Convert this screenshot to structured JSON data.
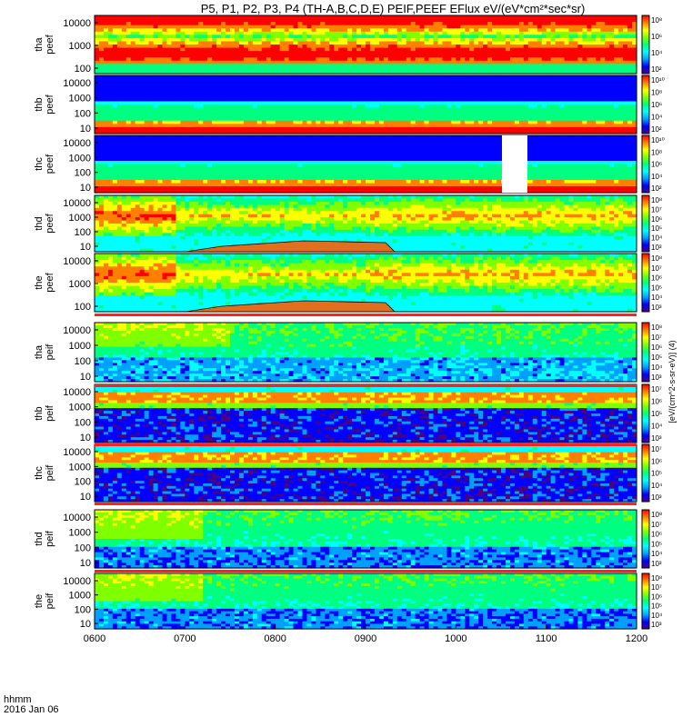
{
  "title": "P5, P1, P2, P3, P4 (TH-A,B,C,D,E) PEIF,PEEF EFlux eV/(eV*cm²*sec*sr)",
  "colorbar_unit_label": "[eV/(cm^2-s-sr-eV)] (4)",
  "footer": {
    "line1": "hhmm",
    "line2": "2016 Jan 06"
  },
  "colormap": [
    "#4b0082",
    "#0000ff",
    "#00a0ff",
    "#00ffff",
    "#00ff80",
    "#80ff00",
    "#ffff00",
    "#ff8000",
    "#ff0000"
  ],
  "chart_data": {
    "type": "heatmap",
    "x_axis": {
      "label": "hhmm",
      "ticks": [
        "0600",
        "0700",
        "0800",
        "0900",
        "1000",
        "1100",
        "1200"
      ],
      "range": [
        "0600",
        "1200"
      ]
    },
    "panels": [
      {
        "label": "tha\npeef",
        "yticks": [
          "10000",
          "1000",
          "100"
        ],
        "cbticks": [
          "10⁸",
          "10⁶",
          "10⁴",
          "10²"
        ],
        "type": "electron",
        "pattern": "tha_e"
      },
      {
        "label": "thb\npeef",
        "yticks": [
          "10000",
          "1000",
          "100",
          "10"
        ],
        "cbticks": [
          "10¹⁰",
          "10⁸",
          "10⁶",
          "10⁴",
          "10²"
        ],
        "type": "electron",
        "pattern": "thb_e"
      },
      {
        "label": "thc\npeef",
        "yticks": [
          "10000",
          "1000",
          "100",
          "10"
        ],
        "cbticks": [
          "10¹⁰",
          "10⁸",
          "10⁶",
          "10⁴",
          "10²"
        ],
        "type": "electron",
        "pattern": "thc_e"
      },
      {
        "label": "thd\npeef",
        "yticks": [
          "10000",
          "1000",
          "100",
          "10"
        ],
        "cbticks": [
          "10⁸",
          "10⁷",
          "10⁶",
          "10⁵",
          "10⁴",
          "10³"
        ],
        "type": "electron",
        "pattern": "thd_e"
      },
      {
        "label": "the\npeef",
        "yticks": [
          "10000",
          "1000",
          "100"
        ],
        "cbticks": [
          "10⁸",
          "10⁷",
          "10⁶",
          "10⁵",
          "10⁴",
          "10³"
        ],
        "type": "electron",
        "pattern": "the_e"
      },
      {
        "label": "tha\npeif",
        "yticks": [
          "10000",
          "1000",
          "100",
          "10"
        ],
        "cbticks": [
          "10⁸",
          "10⁷",
          "10⁶",
          "10⁵",
          "10⁴",
          "10³"
        ],
        "type": "ion",
        "pattern": "tha_i"
      },
      {
        "label": "thb\npeif",
        "yticks": [
          "10000",
          "1000",
          "100",
          "10"
        ],
        "cbticks": [
          "10⁷",
          "10⁶",
          "10⁵",
          "10⁴",
          "10³"
        ],
        "type": "ion",
        "pattern": "thb_i"
      },
      {
        "label": "thc\npeif",
        "yticks": [
          "10000",
          "1000",
          "100",
          "10"
        ],
        "cbticks": [
          "10⁷",
          "10⁶",
          "10⁵",
          "10⁴",
          "10³"
        ],
        "type": "ion",
        "pattern": "thc_i"
      },
      {
        "label": "thd\npeif",
        "yticks": [
          "10000",
          "1000",
          "100",
          "10"
        ],
        "cbticks": [
          "10⁸",
          "10⁷",
          "10⁶",
          "10⁵",
          "10⁴",
          "10³"
        ],
        "type": "ion",
        "pattern": "thd_i"
      },
      {
        "label": "the\npeif",
        "yticks": [
          "10000",
          "1000",
          "100",
          "10"
        ],
        "cbticks": [
          "10⁸",
          "10⁷",
          "10⁶",
          "10⁵",
          "10⁴",
          "10³"
        ],
        "type": "ion",
        "pattern": "the_i"
      }
    ]
  }
}
